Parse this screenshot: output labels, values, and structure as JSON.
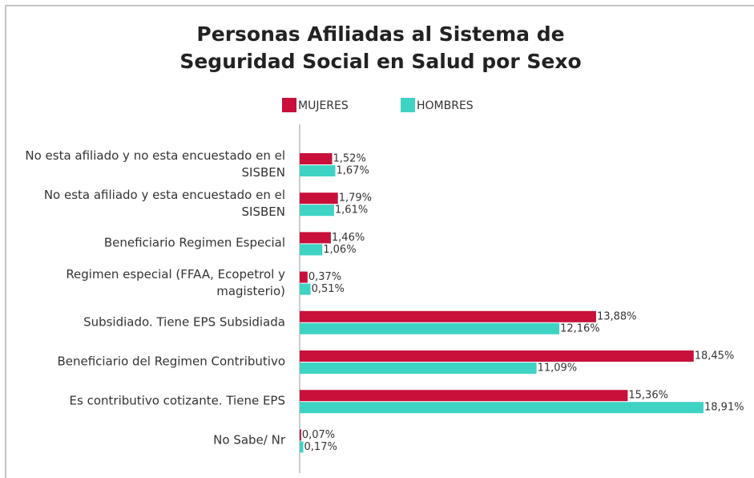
{
  "chart_data": {
    "type": "barh",
    "title": "Personas Afiliadas al Sistema de Seguridad Social en Salud por Sexo",
    "categories": [
      "No esta afiliado y no esta encuestado en el SISBEN",
      "No esta afiliado y esta encuestado en el SISBEN",
      "Beneficiario Regimen Especial",
      "Regimen especial (FFAA, Ecopetrol y magisterio)",
      "Subsidiado. Tiene EPS Subsidiada",
      "Beneficiario del Regimen Contributivo",
      "Es contributivo cotizante. Tiene EPS",
      "No Sabe/ Nr"
    ],
    "series": [
      {
        "name": "MUJERES",
        "color": "#c8103a",
        "values": [
          1.52,
          1.79,
          1.46,
          0.37,
          13.88,
          18.45,
          15.36,
          0.07
        ],
        "value_labels": [
          "1,52%",
          "1,79%",
          "1,46%",
          "0,37%",
          "13,88%",
          "18,45%",
          "15,36%",
          "0,07%"
        ]
      },
      {
        "name": "HOMBRES",
        "color": "#3fd3c3",
        "values": [
          1.67,
          1.61,
          1.06,
          0.51,
          12.16,
          11.09,
          18.91,
          0.17
        ],
        "value_labels": [
          "1,67%",
          "1,61%",
          "1,06%",
          "0,51%",
          "12,16%",
          "11,09%",
          "18,91%",
          "0,17%"
        ]
      }
    ],
    "legend": "top"
  }
}
